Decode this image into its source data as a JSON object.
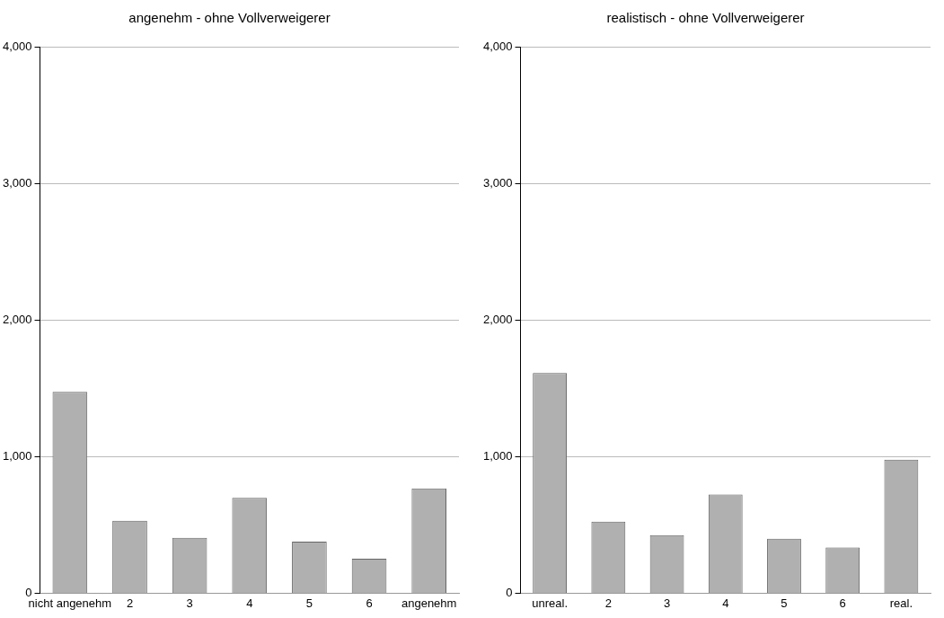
{
  "chart_data": [
    {
      "type": "bar",
      "title": "angenehm - ohne Vollverweigerer",
      "categories": [
        "nicht angenehm",
        "2",
        "3",
        "4",
        "5",
        "6",
        "angenehm"
      ],
      "values": [
        1474,
        531,
        405,
        698,
        377,
        253,
        767
      ],
      "color": "#b0b0b0",
      "ylim": [
        0,
        4000
      ],
      "yticks": [
        {
          "value": 0,
          "label": "0"
        },
        {
          "value": 1000,
          "label": "1,000"
        },
        {
          "value": 2000,
          "label": "2,000"
        },
        {
          "value": 3000,
          "label": "3,000"
        },
        {
          "value": 4000,
          "label": "4,000"
        }
      ],
      "grid": "y",
      "legend": false
    },
    {
      "type": "bar",
      "title": "realistisch - ohne Vollverweigerer",
      "categories": [
        "unreal.",
        "2",
        "3",
        "4",
        "5",
        "6",
        "real."
      ],
      "values": [
        1611,
        524,
        425,
        723,
        398,
        334,
        978
      ],
      "color": "#b0b0b0",
      "ylim": [
        0,
        4000
      ],
      "yticks": [
        {
          "value": 0,
          "label": "0"
        },
        {
          "value": 1000,
          "label": "1,000"
        },
        {
          "value": 2000,
          "label": "2,000"
        },
        {
          "value": 3000,
          "label": "3,000"
        },
        {
          "value": 4000,
          "label": "4,000"
        }
      ],
      "grid": "y",
      "legend": false
    }
  ]
}
